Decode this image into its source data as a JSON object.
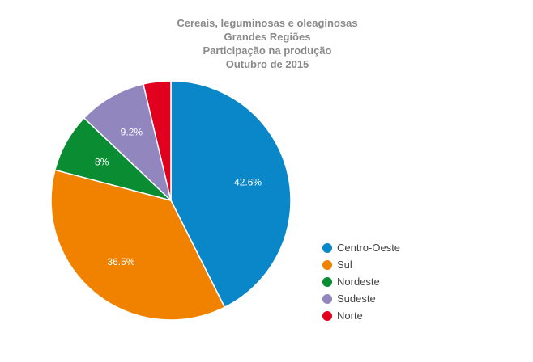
{
  "chart_data": {
    "type": "pie",
    "title_lines": [
      "Cereais, leguminosas e oleaginosas",
      "Grandes Regiões",
      "Participação na produção",
      "Outubro de 2015"
    ],
    "categories": [
      "Centro-Oeste",
      "Sul",
      "Nordeste",
      "Sudeste",
      "Norte"
    ],
    "values": [
      42.6,
      36.5,
      8,
      9.2,
      3.7
    ],
    "data_labels": [
      "42.6%",
      "36.5%",
      "8%",
      "9.2%",
      ""
    ],
    "colors": [
      "#0a87c8",
      "#f08200",
      "#0a8c32",
      "#9186bd",
      "#e1001e"
    ],
    "legend_position": "right"
  }
}
